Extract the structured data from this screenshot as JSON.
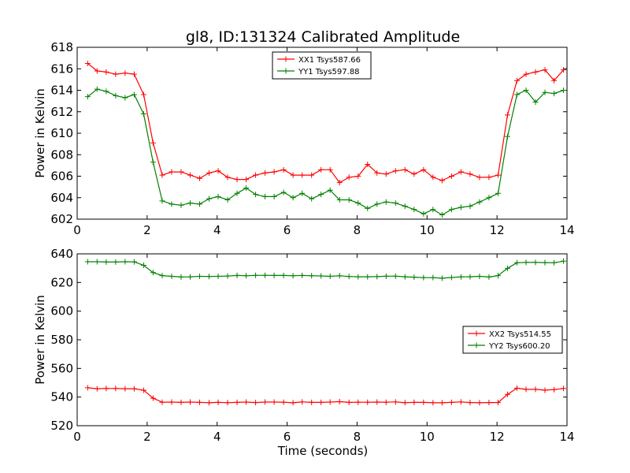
{
  "chart_data": [
    {
      "type": "line",
      "title": "gl8, ID:131324 Calibrated Amplitude",
      "xlabel": "",
      "ylabel": "Power in Kelvin",
      "xlim": [
        0,
        14
      ],
      "ylim": [
        602,
        618
      ],
      "xticks": [
        "0",
        "2",
        "4",
        "6",
        "8",
        "10",
        "12",
        "14"
      ],
      "yticks": [
        "602",
        "604",
        "606",
        "608",
        "610",
        "612",
        "614",
        "616",
        "618"
      ],
      "legend_position": "top-center",
      "x": [
        0.3,
        0.57,
        0.83,
        1.1,
        1.37,
        1.63,
        1.9,
        2.17,
        2.43,
        2.7,
        2.97,
        3.23,
        3.5,
        3.77,
        4.03,
        4.3,
        4.57,
        4.83,
        5.1,
        5.37,
        5.63,
        5.9,
        6.17,
        6.43,
        6.7,
        6.97,
        7.23,
        7.5,
        7.77,
        8.03,
        8.3,
        8.57,
        8.83,
        9.1,
        9.37,
        9.63,
        9.9,
        10.17,
        10.43,
        10.7,
        10.97,
        11.23,
        11.5,
        11.77,
        12.03,
        12.3,
        12.57,
        12.83,
        13.1,
        13.37,
        13.63,
        13.9
      ],
      "series": [
        {
          "name": "XX1 Tsys587.66",
          "color": "#ff0000",
          "values": [
            616.5,
            615.8,
            615.7,
            615.5,
            615.6,
            615.5,
            613.6,
            609.1,
            606.1,
            606.4,
            606.4,
            606.1,
            605.8,
            606.3,
            606.5,
            605.9,
            605.7,
            605.7,
            606.1,
            606.3,
            606.4,
            606.6,
            606.1,
            606.1,
            606.1,
            606.6,
            606.6,
            605.4,
            605.9,
            606.0,
            607.1,
            606.3,
            606.2,
            606.5,
            606.6,
            606.2,
            606.6,
            605.9,
            605.6,
            606.0,
            606.4,
            606.2,
            605.9,
            605.9,
            606.1,
            611.7,
            614.9,
            615.5,
            615.7,
            615.9,
            614.9,
            615.9
          ]
        },
        {
          "name": "YY1 Tsys597.88",
          "color": "#008000",
          "values": [
            613.4,
            614.1,
            613.9,
            613.5,
            613.3,
            613.6,
            611.8,
            607.3,
            603.7,
            603.4,
            603.3,
            603.5,
            603.4,
            603.9,
            604.1,
            603.8,
            604.4,
            604.9,
            604.3,
            604.1,
            604.1,
            604.5,
            604.0,
            604.4,
            603.9,
            604.3,
            604.7,
            603.8,
            603.8,
            603.5,
            603.0,
            603.4,
            603.6,
            603.5,
            603.2,
            602.9,
            602.5,
            602.9,
            602.4,
            602.9,
            603.1,
            603.2,
            603.6,
            604.0,
            604.4,
            609.7,
            613.6,
            614.0,
            612.9,
            613.8,
            613.7,
            614.0
          ]
        }
      ]
    },
    {
      "type": "line",
      "title": "",
      "xlabel": "Time (seconds)",
      "ylabel": "Power in Kelvin",
      "xlim": [
        0,
        14
      ],
      "ylim": [
        520,
        640
      ],
      "xticks": [
        "0",
        "2",
        "4",
        "6",
        "8",
        "10",
        "12",
        "14"
      ],
      "yticks": [
        "520",
        "540",
        "560",
        "580",
        "600",
        "620",
        "640"
      ],
      "legend_position": "center-right",
      "x": [
        0.3,
        0.57,
        0.83,
        1.1,
        1.37,
        1.63,
        1.9,
        2.17,
        2.43,
        2.7,
        2.97,
        3.23,
        3.5,
        3.77,
        4.03,
        4.3,
        4.57,
        4.83,
        5.1,
        5.37,
        5.63,
        5.9,
        6.17,
        6.43,
        6.7,
        6.97,
        7.23,
        7.5,
        7.77,
        8.03,
        8.3,
        8.57,
        8.83,
        9.1,
        9.37,
        9.63,
        9.9,
        10.17,
        10.43,
        10.7,
        10.97,
        11.23,
        11.5,
        11.77,
        12.03,
        12.3,
        12.57,
        12.83,
        13.1,
        13.37,
        13.63,
        13.9
      ],
      "series": [
        {
          "name": "XX2 Tsys514.55",
          "color": "#ff0000",
          "values": [
            546.5,
            545.8,
            546.0,
            546.0,
            545.8,
            545.8,
            544.8,
            539.2,
            536.4,
            536.5,
            536.3,
            536.5,
            536.3,
            536.0,
            536.3,
            536.1,
            536.3,
            536.5,
            536.2,
            536.5,
            536.5,
            536.4,
            536.0,
            536.6,
            536.3,
            536.3,
            536.5,
            536.8,
            536.3,
            536.4,
            536.4,
            536.5,
            536.4,
            536.6,
            536.1,
            536.3,
            536.3,
            536.0,
            536.0,
            536.3,
            536.6,
            536.2,
            536.0,
            536.2,
            536.2,
            541.9,
            546.2,
            545.4,
            545.4,
            544.8,
            545.2,
            546.0
          ]
        },
        {
          "name": "YY2 Tsys600.20",
          "color": "#008000",
          "values": [
            634.5,
            634.5,
            634.3,
            634.3,
            634.5,
            634.4,
            632.0,
            626.9,
            624.8,
            624.3,
            623.8,
            623.9,
            624.3,
            624.2,
            624.3,
            624.5,
            624.9,
            624.7,
            625.0,
            625.0,
            624.9,
            624.9,
            624.7,
            624.9,
            624.7,
            624.6,
            624.3,
            624.7,
            624.2,
            624.0,
            624.0,
            624.1,
            624.4,
            624.4,
            624.0,
            623.7,
            623.4,
            623.4,
            623.0,
            623.5,
            623.9,
            624.0,
            624.3,
            623.8,
            624.8,
            629.9,
            633.8,
            634.0,
            634.0,
            633.9,
            633.8,
            634.9
          ]
        }
      ]
    }
  ]
}
